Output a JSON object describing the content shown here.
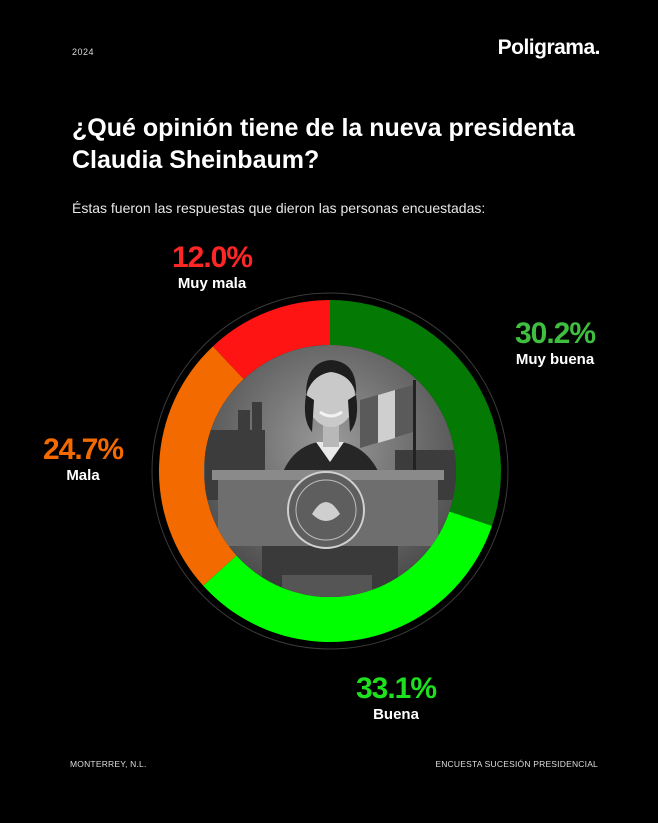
{
  "header": {
    "year": "2024",
    "brand": "Poligrama."
  },
  "title": "¿Qué opinión tiene de la nueva presidenta Claudia Sheinbaum?",
  "subtitle": "Éstas fueron las respuestas que dieron las personas encuestadas:",
  "footer": {
    "left": "MONTERREY, N.L.",
    "right": "ENCUESTA SUCESIÓN PRESIDENCIAL"
  },
  "center_image": "black-and-white photo of a smiling woman at a podium with the Mexican coat of arms",
  "chart_data": {
    "type": "donut",
    "categories": [
      "Muy buena",
      "Buena",
      "Mala",
      "Muy mala"
    ],
    "values": [
      30.2,
      33.1,
      24.7,
      12.0
    ],
    "value_labels": [
      "30.2%",
      "33.1%",
      "24.7%",
      "12.0%"
    ],
    "colors": [
      "#047a04",
      "#00ff00",
      "#f26a00",
      "#ff1414"
    ],
    "start": "top",
    "direction": "clockwise",
    "unit": "%"
  }
}
